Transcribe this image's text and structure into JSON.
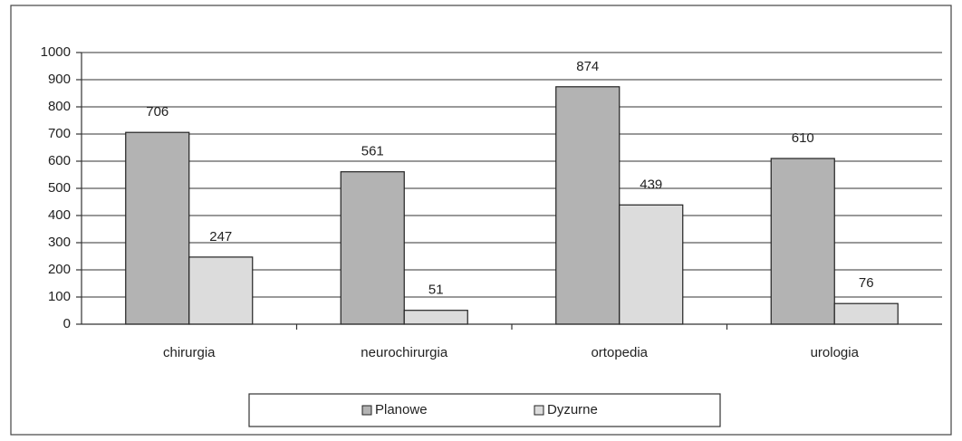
{
  "chart_data": {
    "type": "bar",
    "categories": [
      "chirurgia",
      "neurochirurgia",
      "ortopedia",
      "urologia"
    ],
    "series": [
      {
        "name": "Planowe",
        "color": "#b3b3b3",
        "values": [
          706,
          561,
          874,
          610
        ]
      },
      {
        "name": "Dyzurne",
        "color": "#dcdcdc",
        "values": [
          247,
          51,
          439,
          76
        ]
      }
    ],
    "ylim": [
      0,
      1000
    ],
    "yticks": [
      0,
      100,
      200,
      300,
      400,
      500,
      600,
      700,
      800,
      900,
      1000
    ],
    "grid": true,
    "legend": "bottom"
  }
}
